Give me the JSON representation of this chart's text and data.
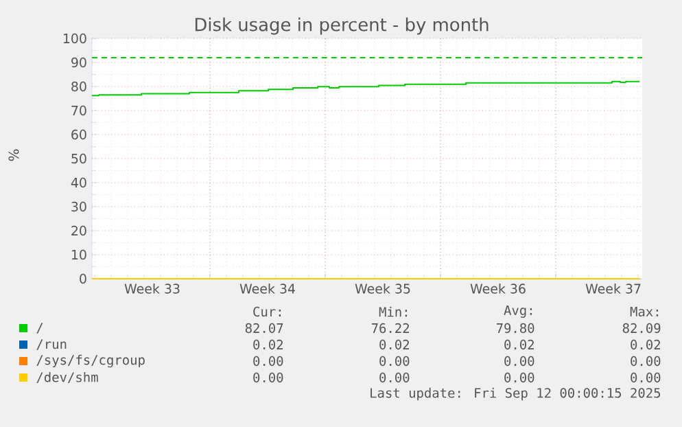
{
  "chart_data": {
    "type": "step",
    "title": "Disk usage in percent - by month",
    "ylabel": "%",
    "xlim": [
      "2025-08-10T20:00",
      "2025-09-13T06:00"
    ],
    "ylim": [
      0,
      100
    ],
    "xticks": [
      {
        "value": "2025-08-18",
        "label": null
      },
      {
        "value": "2025-08-25",
        "label": null
      },
      {
        "value": "2025-09-01",
        "label": null
      },
      {
        "value": "2025-09-08",
        "label": null
      },
      {
        "value": "2025-08-14T12:00",
        "label": "Week 33"
      },
      {
        "value": "2025-08-21T12:00",
        "label": "Week 34"
      },
      {
        "value": "2025-08-28T12:00",
        "label": "Week 35"
      },
      {
        "value": "2025-09-04T12:00",
        "label": "Week 36"
      },
      {
        "value": "2025-09-11T12:00",
        "label": "Week 37"
      }
    ],
    "yticks": [
      0,
      10,
      20,
      30,
      40,
      50,
      60,
      70,
      80,
      90,
      100
    ],
    "grid": true,
    "legend": "bottom",
    "line_style": "solid",
    "marker": "none",
    "series": [
      {
        "name": "/",
        "color": "#00cc00",
        "x": [
          "2025-08-10T20:00",
          "2025-08-11T06:00",
          "2025-08-13T20:00",
          "2025-08-16T18:00",
          "2025-08-19T18:00",
          "2025-08-21T13:00",
          "2025-08-23T01:00",
          "2025-08-24T13:00",
          "2025-08-25T06:00",
          "2025-08-25T20:00",
          "2025-08-28T06:00",
          "2025-08-29T20:00",
          "2025-09-02T13:00",
          "2025-09-11T10:00",
          "2025-09-11T22:00",
          "2025-09-12T06:00",
          "2025-09-13T02:00"
        ],
        "values": [
          76.2,
          76.5,
          77.0,
          77.5,
          78.2,
          78.8,
          79.4,
          79.9,
          79.4,
          79.9,
          80.4,
          80.9,
          81.5,
          82.1,
          81.7,
          82.1,
          82.1
        ]
      },
      {
        "name": "/run",
        "color": "#0066b3",
        "values": [
          null,
          null
        ]
      },
      {
        "name": "/sys/fs/cgroup",
        "color": "#ff8000",
        "values": [
          null,
          null
        ]
      },
      {
        "name": "/dev/shm",
        "color": "#ffcc00",
        "x": [
          "2025-08-10T20:00",
          "2025-09-13T02:00"
        ],
        "values": [
          0,
          0
        ]
      }
    ],
    "ref_lines": [
      {
        "axis": "y",
        "value": 92,
        "color": "#00cc00",
        "line_style": "dashed"
      }
    ],
    "annotations": [
      "Cur:",
      "Min:",
      "Avg:",
      "Max:",
      "82.07",
      "76.22",
      "79.80",
      "82.09",
      "0.02",
      "0.02",
      "0.02",
      "0.02",
      "0.00",
      "0.00",
      "0.00",
      "0.00",
      "0.00",
      "0.00",
      "0.00",
      "0.00",
      "Last update: Fri Sep 12 00:00:15 2025"
    ]
  }
}
